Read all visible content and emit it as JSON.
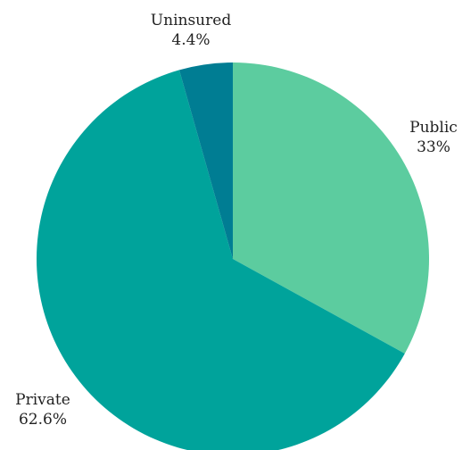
{
  "chart_data": {
    "type": "pie",
    "title": "",
    "slices": [
      {
        "label": "Public",
        "value": 33,
        "display": "33%",
        "color": "#5ccc9f"
      },
      {
        "label": "Private",
        "value": 62.6,
        "display": "62.6%",
        "color": "#00a39b"
      },
      {
        "label": "Uninsured",
        "value": 4.4,
        "display": "4.4%",
        "color": "#007d93"
      }
    ],
    "start": "12 o'clock",
    "direction": "clockwise",
    "legend": "none",
    "labels": "outside, name above percentage"
  }
}
